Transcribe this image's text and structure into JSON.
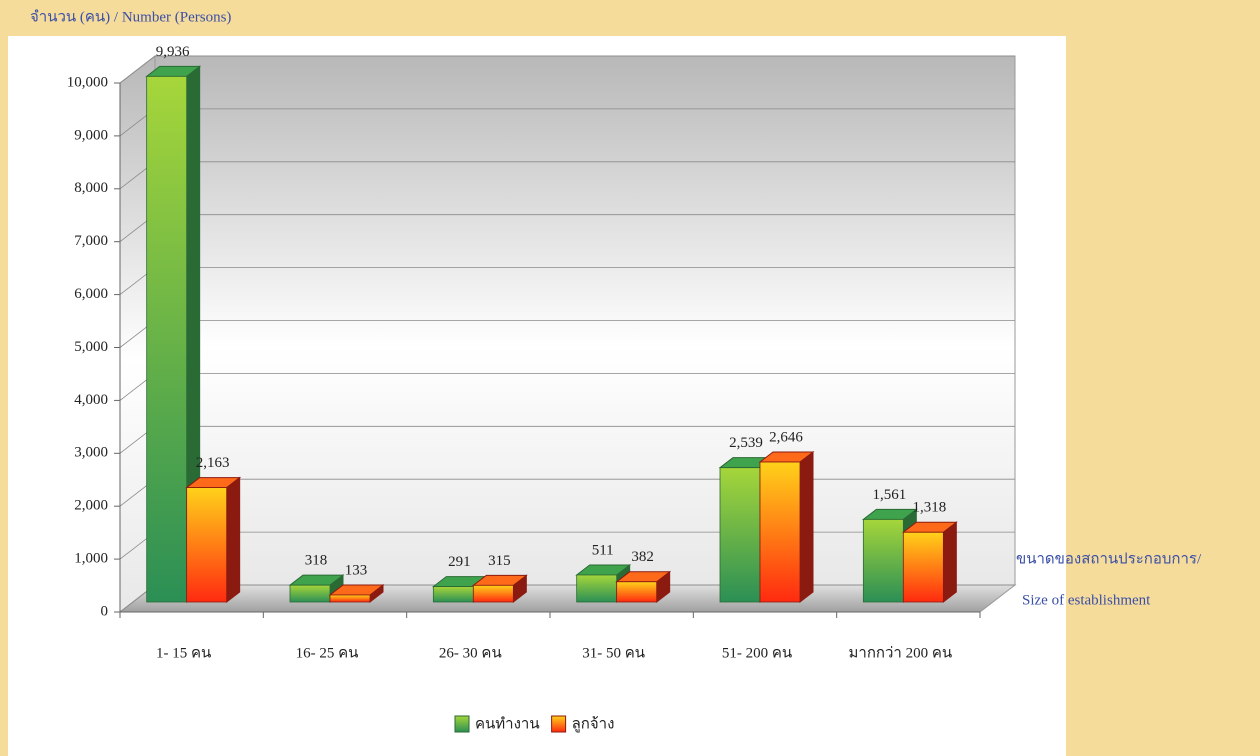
{
  "chart_data": {
    "type": "bar3d",
    "ylabel": "จำนวน (คน) / Number (Persons)",
    "xlabel": [
      "ขนาดของสถานประกอบการ/",
      "Size of establishment"
    ],
    "categories": [
      "1- 15 คน",
      "16- 25 คน",
      "26- 30 คน",
      "31- 50 คน",
      "51- 200 คน",
      "มากกว่า 200 คน"
    ],
    "series": [
      {
        "name": "คนทำงาน",
        "color": "#3fa34d",
        "values": [
          9936,
          318,
          291,
          511,
          2539,
          1561
        ],
        "value_labels": [
          "9,936",
          "318",
          "291",
          "511",
          "2,539",
          "1,561"
        ]
      },
      {
        "name": "ลูกจ้าง",
        "color": "#ff6a1a",
        "values": [
          2163,
          133,
          315,
          382,
          2646,
          1318
        ],
        "value_labels": [
          "2,163",
          "133",
          "315",
          "382",
          "2,646",
          "1,318"
        ]
      }
    ],
    "ylim": [
      0,
      10000
    ],
    "yticks": [
      0,
      {
        "value": 1000,
        "label": "1,000"
      },
      {
        "value": 2000,
        "label": "2,000"
      },
      {
        "value": 3000,
        "label": "3,000"
      },
      {
        "value": 4000,
        "label": "4,000"
      },
      {
        "value": 5000,
        "label": "5,000"
      },
      {
        "value": 6000,
        "label": "6,000"
      },
      {
        "value": 7000,
        "label": "7,000"
      },
      {
        "value": 8000,
        "label": "8,000"
      },
      {
        "value": 9000,
        "label": "9,000"
      },
      {
        "value": 10000,
        "label": "10,000"
      }
    ],
    "grid": true
  }
}
